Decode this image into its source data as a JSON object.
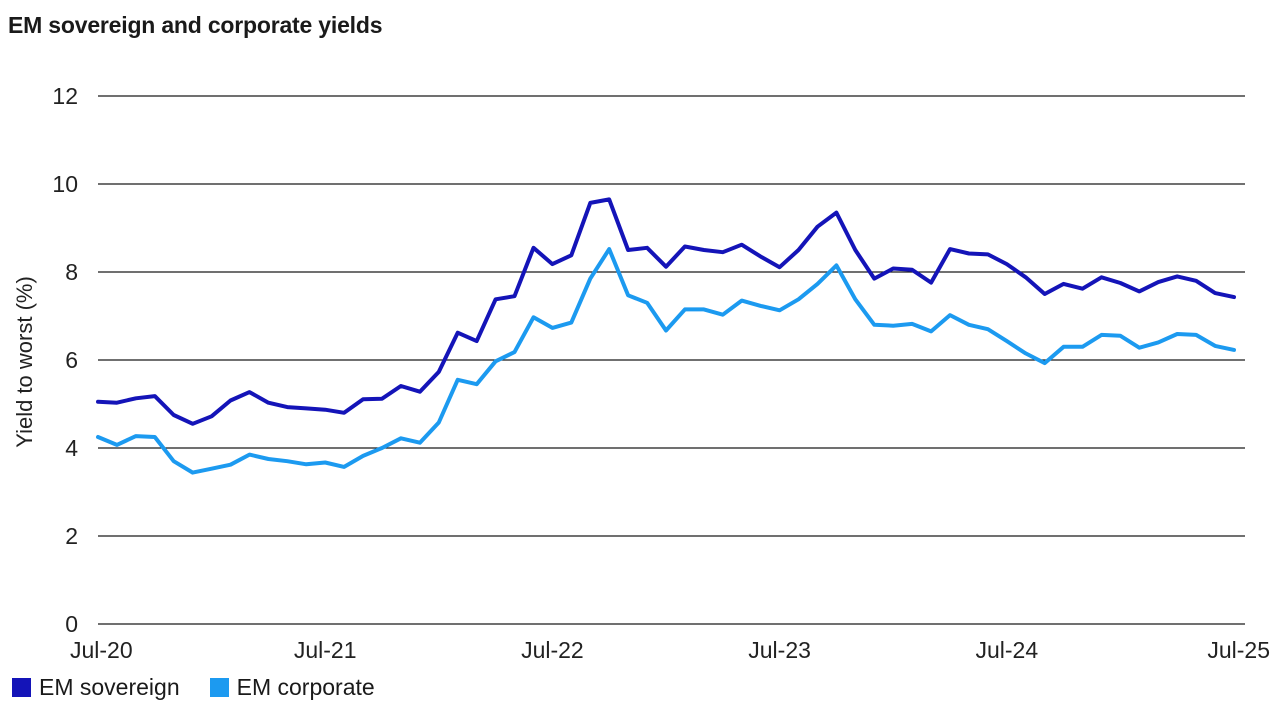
{
  "chart_data": {
    "type": "line",
    "title": "EM sovereign and corporate yields",
    "ylabel": "Yield to worst (%)",
    "ylim": [
      0,
      12
    ],
    "yticks": [
      "0",
      "2",
      "4",
      "6",
      "8",
      "10",
      "12"
    ],
    "xticks": [
      "Jul-20",
      "Jul-21",
      "Jul-22",
      "Jul-23",
      "Jul-24",
      "Jul-25"
    ],
    "x": [
      "Jul-20",
      "Aug-20",
      "Sep-20",
      "Oct-20",
      "Nov-20",
      "Dec-20",
      "Jan-21",
      "Feb-21",
      "Mar-21",
      "Apr-21",
      "May-21",
      "Jun-21",
      "Jul-21",
      "Aug-21",
      "Sep-21",
      "Oct-21",
      "Nov-21",
      "Dec-21",
      "Jan-22",
      "Feb-22",
      "Mar-22",
      "Apr-22",
      "May-22",
      "Jun-22",
      "Jul-22",
      "Aug-22",
      "Sep-22",
      "Oct-22",
      "Nov-22",
      "Dec-22",
      "Jan-23",
      "Feb-23",
      "Mar-23",
      "Apr-23",
      "May-23",
      "Jun-23",
      "Jul-23",
      "Aug-23",
      "Sep-23",
      "Oct-23",
      "Nov-23",
      "Dec-23",
      "Jan-24",
      "Feb-24",
      "Mar-24",
      "Apr-24",
      "May-24",
      "Jun-24",
      "Jul-24",
      "Aug-24",
      "Sep-24",
      "Oct-24",
      "Nov-24",
      "Dec-24",
      "Jan-25",
      "Feb-25",
      "Mar-25",
      "Apr-25",
      "May-25",
      "Jun-25",
      "Jul-25"
    ],
    "grid": true,
    "legend_position": "bottom-left",
    "series": [
      {
        "name": "EM sovereign",
        "color": "#1414b8",
        "values": [
          5.05,
          5.03,
          5.13,
          5.18,
          4.75,
          4.55,
          4.72,
          5.08,
          5.27,
          5.03,
          4.93,
          4.9,
          4.87,
          4.8,
          5.11,
          5.12,
          5.41,
          5.28,
          5.73,
          6.62,
          6.43,
          7.38,
          7.45,
          8.55,
          8.18,
          8.38,
          9.57,
          9.65,
          8.5,
          8.55,
          8.12,
          8.58,
          8.5,
          8.45,
          8.62,
          8.35,
          8.11,
          8.5,
          9.03,
          9.35,
          8.5,
          7.85,
          8.08,
          8.05,
          7.76,
          8.52,
          8.42,
          8.4,
          8.18,
          7.88,
          7.5,
          7.73,
          7.62,
          7.88,
          7.75,
          7.56,
          7.77,
          7.9,
          7.8,
          7.52,
          7.43
        ]
      },
      {
        "name": "EM corporate",
        "color": "#1c9af0",
        "values": [
          4.25,
          4.07,
          4.27,
          4.25,
          3.7,
          3.44,
          3.53,
          3.62,
          3.85,
          3.75,
          3.7,
          3.63,
          3.67,
          3.57,
          3.82,
          4.0,
          4.22,
          4.12,
          4.58,
          5.55,
          5.45,
          5.97,
          6.18,
          6.97,
          6.73,
          6.85,
          7.85,
          8.52,
          7.47,
          7.3,
          6.67,
          7.15,
          7.15,
          7.03,
          7.35,
          7.23,
          7.13,
          7.38,
          7.73,
          8.15,
          7.38,
          6.8,
          6.78,
          6.82,
          6.65,
          7.02,
          6.8,
          6.7,
          6.43,
          6.15,
          5.93,
          6.3,
          6.3,
          6.57,
          6.55,
          6.28,
          6.4,
          6.59,
          6.57,
          6.32,
          6.23
        ]
      }
    ]
  }
}
